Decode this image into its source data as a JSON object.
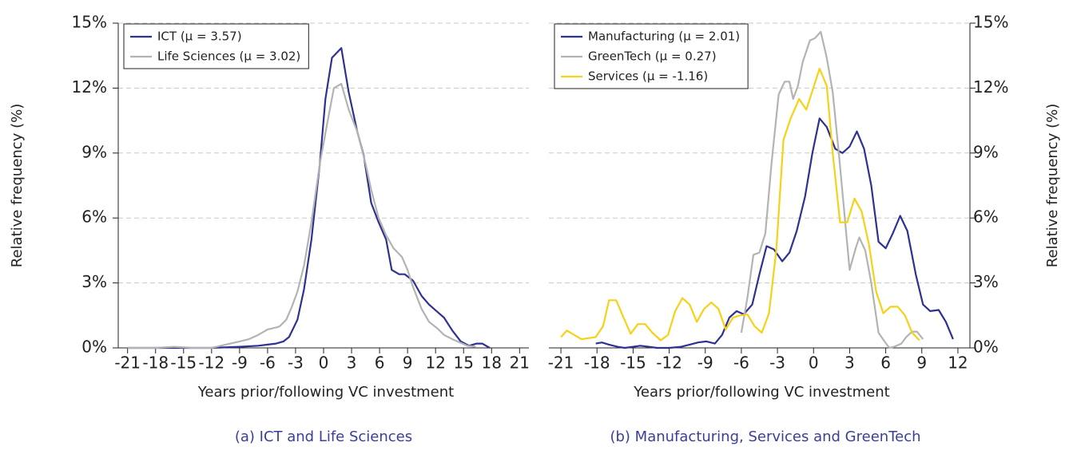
{
  "chart_data": [
    {
      "type": "line",
      "caption": "(a) ICT and Life Sciences",
      "x_label": "Years prior/following VC investment",
      "y_label": "Relative frequency (%)",
      "xlim": [
        -22,
        22
      ],
      "xticks": [
        -21,
        -18,
        -15,
        -12,
        -9,
        -6,
        -3,
        0,
        3,
        6,
        9,
        12,
        15,
        18,
        21
      ],
      "ylim": [
        0,
        15
      ],
      "yticks": [
        {
          "value": 0,
          "label": "0%"
        },
        {
          "value": 3,
          "label": "3%"
        },
        {
          "value": 6,
          "label": "6%"
        },
        {
          "value": 9,
          "label": "9%"
        },
        {
          "value": 12,
          "label": "12%"
        },
        {
          "value": 15,
          "label": "15%"
        }
      ],
      "y_axis_side": "left",
      "grid": true,
      "legend": "upper left",
      "series": [
        {
          "name": "ICT (μ = 3.57)",
          "color": "#2e3192",
          "x": [
            -21,
            -15,
            -12,
            -9,
            -7,
            -6,
            -5.1,
            -4.3,
            -3.7,
            -2.8,
            -2.1,
            -1.3,
            -0.4,
            0.2,
            0.9,
            1.9,
            2.7,
            3.6,
            4.3,
            5.1,
            5.9,
            6.7,
            7.3,
            8.1,
            8.7,
            9.6,
            10.5,
            11.3,
            12.1,
            12.9,
            13.8,
            14.7,
            15.6,
            16.4,
            17,
            17.8
          ],
          "values": [
            0,
            0,
            0,
            0.05,
            0.1,
            0.15,
            0.2,
            0.3,
            0.5,
            1.3,
            2.7,
            5,
            8.5,
            11.5,
            13.4,
            13.85,
            11.8,
            10,
            8.9,
            6.7,
            5.8,
            5,
            3.6,
            3.4,
            3.4,
            3.1,
            2.4,
            2,
            1.7,
            1.4,
            0.8,
            0.3,
            0.1,
            0.2,
            0.2,
            0
          ]
        },
        {
          "name": "Life Sciences (μ = 3.02)",
          "color": "#b3b3b3",
          "x": [
            -21,
            -18,
            -16,
            -14,
            -12,
            -11,
            -10,
            -9,
            -8,
            -7,
            -6,
            -5,
            -4.7,
            -4,
            -3.4,
            -2.8,
            -2.1,
            -1.3,
            -0.4,
            0.4,
            1.1,
            1.9,
            2.7,
            3.6,
            4.5,
            5.1,
            5.9,
            6.7,
            7.5,
            8.4,
            9,
            9.6,
            10.5,
            11.3,
            12.2,
            12.9,
            13.8,
            14.6,
            15.4,
            16.3
          ],
          "values": [
            0,
            0,
            0.05,
            0,
            0,
            0.1,
            0.2,
            0.3,
            0.4,
            0.6,
            0.85,
            0.95,
            1,
            1.3,
            1.9,
            2.6,
            3.8,
            5.8,
            8.5,
            10.4,
            12,
            12.2,
            11,
            10,
            8.5,
            7.3,
            6,
            5.2,
            4.6,
            4.2,
            3.6,
            2.8,
            1.8,
            1.2,
            0.9,
            0.6,
            0.4,
            0.25,
            0.1,
            0.05
          ]
        }
      ]
    },
    {
      "type": "line",
      "caption": "(b) Manufacturing, Services and GreenTech",
      "x_label": "Years prior/following VC investment",
      "y_label": "Relative frequency (%)",
      "xlim": [
        -22,
        13
      ],
      "xticks": [
        -21,
        -18,
        -15,
        -12,
        -9,
        -6,
        -3,
        0,
        3,
        6,
        9,
        12
      ],
      "ylim": [
        0,
        15
      ],
      "yticks": [
        {
          "value": 0,
          "label": "0%"
        },
        {
          "value": 3,
          "label": "3%"
        },
        {
          "value": 6,
          "label": "6%"
        },
        {
          "value": 9,
          "label": "9%"
        },
        {
          "value": 12,
          "label": "12%"
        },
        {
          "value": 15,
          "label": "15%"
        }
      ],
      "y_axis_side": "right",
      "grid": true,
      "legend": "upper left",
      "series": [
        {
          "name": "Manufacturing (μ = 2.01)",
          "color": "#2e3192",
          "x": [
            -18.1,
            -17.6,
            -17,
            -16.3,
            -15.7,
            -15,
            -14.4,
            -13.7,
            -13,
            -12,
            -11,
            -10.3,
            -9.6,
            -8.9,
            -8.2,
            -7.6,
            -7,
            -6.4,
            -5.8,
            -5.1,
            -4.5,
            -3.9,
            -3.3,
            -2.6,
            -2,
            -1.4,
            -0.7,
            -0.1,
            0.5,
            1.1,
            1.8,
            2.4,
            3,
            3.6,
            4.2,
            4.8,
            5.4,
            6,
            6.6,
            7.2,
            7.8,
            8.5,
            9.1,
            9.7,
            10.4,
            11,
            11.6
          ],
          "values": [
            0.2,
            0.25,
            0.15,
            0.05,
            0,
            0.05,
            0.1,
            0.05,
            0,
            0,
            0.05,
            0.15,
            0.25,
            0.3,
            0.2,
            0.6,
            1.4,
            1.7,
            1.55,
            2,
            3.4,
            4.7,
            4.55,
            4,
            4.4,
            5.4,
            7,
            9,
            10.6,
            10.2,
            9.2,
            9,
            9.3,
            10,
            9.2,
            7.5,
            4.9,
            4.6,
            5.3,
            6.1,
            5.4,
            3.4,
            2,
            1.7,
            1.75,
            1.2,
            0.4
          ]
        },
        {
          "name": "GreenTech (μ = 0.27)",
          "color": "#b3b3b3",
          "x": [
            -6,
            -5.5,
            -5,
            -4.5,
            -4,
            -3.5,
            -2.9,
            -2.4,
            -2,
            -1.7,
            -1.3,
            -0.9,
            -0.3,
            0.1,
            0.6,
            1.1,
            1.6,
            2.1,
            2.6,
            3,
            3.5,
            3.8,
            4.3,
            4.8,
            5.4,
            5.9,
            6.3,
            6.7,
            7.3,
            7.7,
            8.2,
            8.6,
            9.1
          ],
          "values": [
            0.7,
            2.3,
            4.3,
            4.4,
            5.3,
            8.5,
            11.7,
            12.3,
            12.3,
            11.5,
            12.1,
            13.2,
            14.2,
            14.3,
            14.6,
            13.4,
            11.8,
            9,
            6,
            3.6,
            4.6,
            5.1,
            4.5,
            3,
            0.7,
            0.3,
            0,
            0.05,
            0.2,
            0.5,
            0.75,
            0.75,
            0.4
          ]
        },
        {
          "name": "Services (μ = -1.16)",
          "color": "#f7d117",
          "x": [
            -21,
            -20.5,
            -19.9,
            -19.3,
            -18.7,
            -18.1,
            -17.5,
            -17,
            -16.4,
            -15.8,
            -15.2,
            -14.6,
            -14,
            -13.4,
            -12.7,
            -12.1,
            -11.5,
            -10.9,
            -10.3,
            -9.7,
            -9.1,
            -8.5,
            -7.9,
            -7.3,
            -6.7,
            -6.1,
            -5.5,
            -4.9,
            -4.3,
            -3.7,
            -3.1,
            -2.5,
            -1.9,
            -1.2,
            -0.6,
            0.5,
            1.1,
            1.6,
            2.2,
            2.8,
            3.4,
            4,
            4.6,
            5.2,
            5.8,
            6.4,
            7,
            7.6,
            8.2,
            8.8
          ],
          "values": [
            0.5,
            0.8,
            0.6,
            0.4,
            0.45,
            0.5,
            1,
            2.2,
            2.2,
            1.4,
            0.65,
            1.1,
            1.1,
            0.7,
            0.35,
            0.6,
            1.7,
            2.3,
            2,
            1.2,
            1.8,
            2.1,
            1.8,
            0.85,
            1.4,
            1.5,
            1.55,
            1,
            0.7,
            1.6,
            4.5,
            9.6,
            10.6,
            11.5,
            11,
            12.9,
            12.1,
            9,
            5.8,
            5.8,
            6.9,
            6.3,
            4.8,
            2.6,
            1.6,
            1.9,
            1.9,
            1.5,
            0.7,
            0.35
          ]
        }
      ]
    }
  ]
}
